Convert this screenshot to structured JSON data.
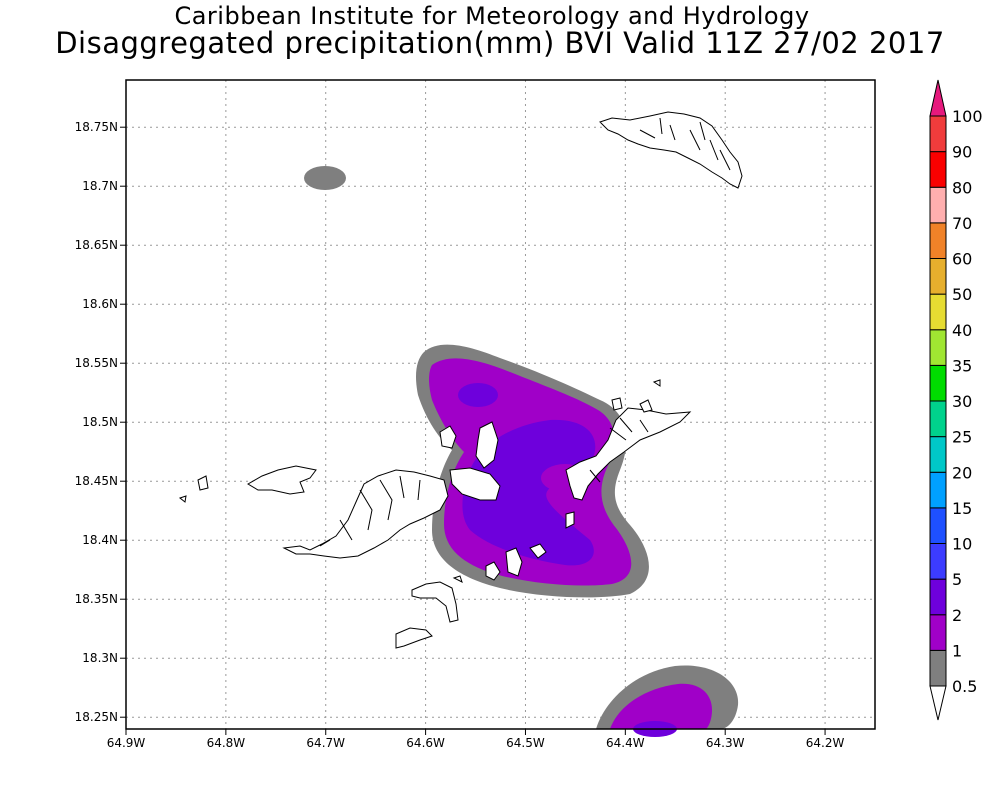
{
  "header": {
    "institute": "Caribbean Institute for Meteorology and Hydrology",
    "product": "Disaggregated precipitation(mm) BVI Valid 11Z 27/02 2017"
  },
  "map": {
    "lon_min": -64.9,
    "lon_max": -64.15,
    "lat_min": 18.24,
    "lat_max": 18.79,
    "x_ticks": [
      {
        "value": -64.9,
        "label": "64.9W"
      },
      {
        "value": -64.8,
        "label": "64.8W"
      },
      {
        "value": -64.7,
        "label": "64.7W"
      },
      {
        "value": -64.6,
        "label": "64.6W"
      },
      {
        "value": -64.5,
        "label": "64.5W"
      },
      {
        "value": -64.4,
        "label": "64.4W"
      },
      {
        "value": -64.3,
        "label": "64.3W"
      },
      {
        "value": -64.2,
        "label": "64.2W"
      }
    ],
    "y_ticks": [
      {
        "value": 18.75,
        "label": "18.75N"
      },
      {
        "value": 18.7,
        "label": "18.7N"
      },
      {
        "value": 18.65,
        "label": "18.65N"
      },
      {
        "value": 18.6,
        "label": "18.6N"
      },
      {
        "value": 18.55,
        "label": "18.55N"
      },
      {
        "value": 18.5,
        "label": "18.5N"
      },
      {
        "value": 18.45,
        "label": "18.45N"
      },
      {
        "value": 18.4,
        "label": "18.4N"
      },
      {
        "value": 18.35,
        "label": "18.35N"
      },
      {
        "value": 18.3,
        "label": "18.3N"
      },
      {
        "value": 18.25,
        "label": "18.25N"
      }
    ],
    "gridlines": true
  },
  "legend": {
    "levels": [
      {
        "label": "0.5",
        "color": "#ffffff"
      },
      {
        "label": "1",
        "color": "#7f7f7f"
      },
      {
        "label": "2",
        "color": "#a000c8"
      },
      {
        "label": "5",
        "color": "#6e00dc"
      },
      {
        "label": "10",
        "color": "#3c3cff"
      },
      {
        "label": "15",
        "color": "#1e50ff"
      },
      {
        "label": "20",
        "color": "#00a0ff"
      },
      {
        "label": "25",
        "color": "#00c8c8"
      },
      {
        "label": "30",
        "color": "#00d28c"
      },
      {
        "label": "35",
        "color": "#00dc00"
      },
      {
        "label": "40",
        "color": "#a0e632"
      },
      {
        "label": "50",
        "color": "#e6dc32"
      },
      {
        "label": "60",
        "color": "#e6af2d"
      },
      {
        "label": "70",
        "color": "#f08228"
      },
      {
        "label": "80",
        "color": "#ffafaf"
      },
      {
        "label": "90",
        "color": "#fa0000"
      },
      {
        "label": "100",
        "color": "#f03c3c"
      }
    ],
    "over_color": "#e6197d",
    "under_color": "#ffffff"
  }
}
